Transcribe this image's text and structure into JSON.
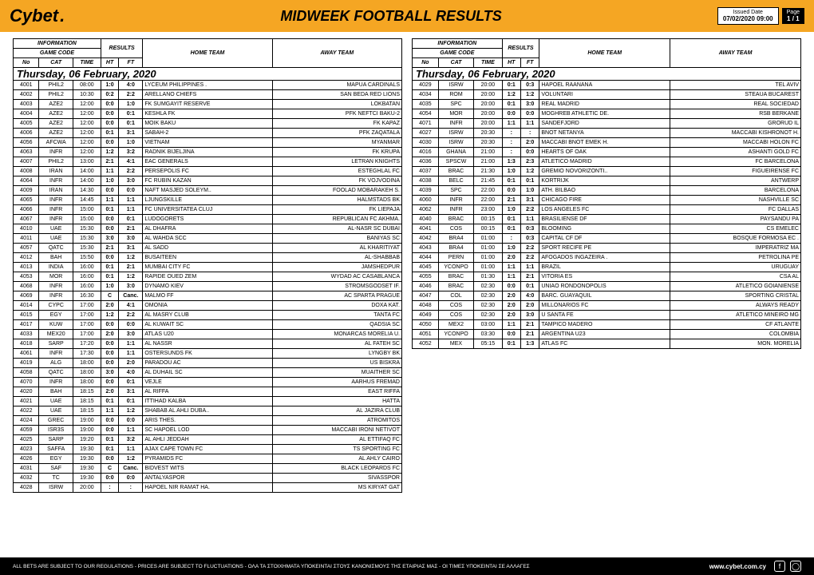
{
  "header": {
    "logo_cy": "Cy",
    "logo_bet": "bet",
    "logo_dot": ".",
    "title": "MIDWEEK FOOTBALL RESULTS",
    "issued_label": "Issued Date",
    "issued_value": "07/02/2020 09:00",
    "page_label": "Page",
    "page_value": "1 / 1"
  },
  "table_headers": {
    "info": "INFORMATION",
    "results": "RESULTS",
    "home": "HOME TEAM",
    "away": "AWAY TEAM",
    "game_code": "GAME CODE",
    "no": "No",
    "cat": "CAT",
    "time": "TIME",
    "ht": "HT",
    "ft": "FT"
  },
  "date_header": "Thursday, 06 February, 2020",
  "left_rows": [
    [
      "4001",
      "PHIL2",
      "08:00",
      "1:0",
      "4:0",
      "LYCEUM PHILIPPINES .",
      "MAPUA CARDINALS"
    ],
    [
      "4002",
      "PHIL2",
      "10:30",
      "0:2",
      "2:2",
      "ARELLANO CHIEFS",
      "SAN BEDA RED LIONS"
    ],
    [
      "4003",
      "AZE2",
      "12:00",
      "0:0",
      "1:0",
      "FK SUMGAYIT RESERVE",
      "LOKBATAN"
    ],
    [
      "4004",
      "AZE2",
      "12:00",
      "0:0",
      "0:1",
      "KESHLA FK",
      "PFK NEFTCI BAKU-2"
    ],
    [
      "4005",
      "AZE2",
      "12:00",
      "0:0",
      "0:1",
      "MOIK BAKU",
      "FK KAPAZ"
    ],
    [
      "4006",
      "AZE2",
      "12:00",
      "0:1",
      "3:1",
      "SABAH-2",
      "PFK ZAQATALA"
    ],
    [
      "4056",
      "AFCWA",
      "12:00",
      "0:0",
      "1:0",
      "VIETNAM",
      "MYANMAR"
    ],
    [
      "4063",
      "INFR",
      "12:00",
      "1:2",
      "3:2",
      "RADNIK BIJELJINA",
      "FK KRUPA"
    ],
    [
      "4007",
      "PHIL2",
      "13:00",
      "2:1",
      "4:1",
      "EAC GENERALS",
      "LETRAN KNIGHTS"
    ],
    [
      "4008",
      "IRAN",
      "14:00",
      "1:1",
      "2:2",
      "PERSEPOLIS FC",
      "ESTEGHLAL FC"
    ],
    [
      "4064",
      "INFR",
      "14:00",
      "1:0",
      "3:0",
      "FC RUBIN KAZAN",
      "FK VOJVODINA"
    ],
    [
      "4009",
      "IRAN",
      "14:30",
      "0:0",
      "0:0",
      "NAFT MASJED SOLEYM..",
      "FOOLAD MOBARAKEH S."
    ],
    [
      "4065",
      "INFR",
      "14:45",
      "1:1",
      "1:1",
      "LJUNGSKILLE",
      "HALMSTADS BK"
    ],
    [
      "4066",
      "INFR",
      "15:00",
      "0:1",
      "1:1",
      "FC UNIVERSITATEA CLUJ",
      "FK LIEPAJA"
    ],
    [
      "4067",
      "INFR",
      "15:00",
      "0:0",
      "0:1",
      "LUDOGORETS",
      "REPUBLICAN FC AKHMA."
    ],
    [
      "4010",
      "UAE",
      "15:30",
      "0:0",
      "2:1",
      "AL DHAFRA",
      "AL-NASR SC DUBAI"
    ],
    [
      "4011",
      "UAE",
      "15:30",
      "3:0",
      "3:0",
      "AL WAHDA SCC",
      "BANIYAS SC"
    ],
    [
      "4057",
      "QATC",
      "15:30",
      "2:1",
      "3:1",
      "AL SADD",
      "AL KHARITIYAT"
    ],
    [
      "4012",
      "BAH",
      "15:50",
      "0:0",
      "1:2",
      "BUSAITEEN",
      "AL-SHABBAB"
    ],
    [
      "4013",
      "INDIA",
      "16:00",
      "0:1",
      "2:1",
      "MUMBAI CITY FC",
      "JAMSHEDPUR"
    ],
    [
      "4053",
      "MOR",
      "16:00",
      "0:1",
      "1:2",
      "RAPIDE OUED ZEM",
      "WYDAD AC CASABLANCA"
    ],
    [
      "4068",
      "INFR",
      "16:00",
      "1:0",
      "3:0",
      "DYNAMO KIEV",
      "STROMSGODSET IF."
    ],
    [
      "4069",
      "INFR",
      "16:30",
      "C",
      "Canc.",
      "MALMO FF",
      "AC SPARTA PRAGUE"
    ],
    [
      "4014",
      "CYPC",
      "17:00",
      "2:0",
      "4:1",
      "OMONIA",
      "DOXA KAT."
    ],
    [
      "4015",
      "EGY",
      "17:00",
      "1:2",
      "2:2",
      "AL MASRY CLUB",
      "TANTA FC"
    ],
    [
      "4017",
      "KUW",
      "17:00",
      "0:0",
      "0:0",
      "AL KUWAIT SC",
      "QADSIA SC"
    ],
    [
      "4033",
      "MEX20",
      "17:00",
      "2:0",
      "3:0",
      "ATLAS U20",
      "MONARCAS MORELIA U."
    ],
    [
      "4018",
      "SARP",
      "17:20",
      "0:0",
      "1:1",
      "AL NASSR",
      "AL FATEH SC"
    ],
    [
      "4061",
      "INFR",
      "17:30",
      "0:0",
      "1:1",
      "OSTERSUNDS FK",
      "LYNGBY BK"
    ],
    [
      "4019",
      "ALG",
      "18:00",
      "0:0",
      "2:0",
      "PARADOU AC",
      "US BISKRA"
    ],
    [
      "4058",
      "QATC",
      "18:00",
      "3:0",
      "4:0",
      "AL DUHAIL SC",
      "MUAITHER SC"
    ],
    [
      "4070",
      "INFR",
      "18:00",
      "0:0",
      "0:1",
      "VEJLE",
      "AARHUS FREMAD"
    ],
    [
      "4020",
      "BAH",
      "18:15",
      "2:0",
      "3:1",
      "AL RIFFA",
      "EAST RIFFA"
    ],
    [
      "4021",
      "UAE",
      "18:15",
      "0:1",
      "0:1",
      "ITTIHAD KALBA",
      "HATTA"
    ],
    [
      "4022",
      "UAE",
      "18:15",
      "1:1",
      "1:2",
      "SHABAB AL AHLI DUBA..",
      "AL JAZIRA CLUB"
    ],
    [
      "4024",
      "GREC",
      "19:00",
      "0:0",
      "0:0",
      "ARIS THES.",
      "ATROMITOS"
    ],
    [
      "4059",
      "ISR3S",
      "19:00",
      "0:0",
      "1:1",
      "SC HAPOEL LOD",
      "MACCABI IRONI NETIVOT"
    ],
    [
      "4025",
      "SARP",
      "19:20",
      "0:1",
      "3:2",
      "AL AHLI JEDDAH",
      "AL ETTIFAQ FC"
    ],
    [
      "4023",
      "SAFFA",
      "19:30",
      "0:1",
      "1:1",
      "AJAX CAPE TOWN FC",
      "TS SPORTING FC"
    ],
    [
      "4026",
      "EGY",
      "19:30",
      "0:0",
      "1:2",
      "PYRAMIDS FC",
      "AL AHLY CAIRO"
    ],
    [
      "4031",
      "SAF",
      "19:30",
      "C",
      "Canc.",
      "BIDVEST WITS",
      "BLACK LEOPARDS FC"
    ],
    [
      "4032",
      "TC",
      "19:30",
      "0:0",
      "0:0",
      "ANTALYASPOR",
      "SIVASSPOR"
    ],
    [
      "4028",
      "ISRW",
      "20:00",
      ":",
      ":",
      "HAPOEL NIR RAMAT HA.",
      "MS KIRYAT GAT"
    ]
  ],
  "right_rows": [
    [
      "4029",
      "ISRW",
      "20:00",
      "0:1",
      "0:3",
      "HAPOEL RAANANA",
      "TEL AVIV"
    ],
    [
      "4034",
      "ROM",
      "20:00",
      "1:2",
      "1:2",
      "VOLUNTARI",
      "STEAUA BUCAREST"
    ],
    [
      "4035",
      "SPC",
      "20:00",
      "0:1",
      "3:0",
      "REAL MADRID",
      "REAL SOCIEDAD"
    ],
    [
      "4054",
      "MOR",
      "20:00",
      "0:0",
      "0:0",
      "MOGHREB ATHLETIC DE.",
      "RSB BERKANE"
    ],
    [
      "4071",
      "INFR",
      "20:00",
      "1:1",
      "1:1",
      "SANDEFJORD",
      "GRORUD IL"
    ],
    [
      "4027",
      "ISRW",
      "20:30",
      ":",
      ":",
      "BNOT NETANYA",
      "MACCABI KISHRONOT H."
    ],
    [
      "4030",
      "ISRW",
      "20:30",
      ":",
      "2:0",
      "MACCABI BNOT EMEK H.",
      "MACCABI HOLON FC"
    ],
    [
      "4016",
      "GHANA",
      "21:00",
      ":",
      "0:0",
      "HEARTS OF OAK",
      "ASHANTI GOLD FC"
    ],
    [
      "4036",
      "SPSCW",
      "21:00",
      "1:3",
      "2:3",
      "ATLETICO MADRID",
      "FC BARCELONA"
    ],
    [
      "4037",
      "BRAC",
      "21:30",
      "1:0",
      "1:2",
      "GREMIO NOVORIZONTI..",
      "FIGUEIRENSE FC"
    ],
    [
      "4038",
      "BELC",
      "21:45",
      "0:1",
      "0:1",
      "KORTRIJK",
      "ANTWERP"
    ],
    [
      "4039",
      "SPC",
      "22:00",
      "0:0",
      "1:0",
      "ATH. BILBAO",
      "BARCELONA"
    ],
    [
      "4060",
      "INFR",
      "22:00",
      "2:1",
      "3:1",
      "CHICAGO FIRE",
      "NASHVILLE SC"
    ],
    [
      "4062",
      "INFR",
      "23:00",
      "1:0",
      "2:2",
      "LOS ANGELES FC",
      "FC DALLAS"
    ],
    [
      "4040",
      "BRAC",
      "00:15",
      "0:1",
      "1:1",
      "BRASILIENSE DF",
      "PAYSANDU PA"
    ],
    [
      "4041",
      "COS",
      "00:15",
      "0:1",
      "0:3",
      "BLOOMING",
      "CS EMELEC"
    ],
    [
      "4042",
      "BRA4",
      "01:00",
      ":",
      "0:3",
      "CAPITAL CF DF",
      "BOSQUE FORMOSA EC ."
    ],
    [
      "4043",
      "BRA4",
      "01:00",
      "1:0",
      "2:2",
      "SPORT RECIFE PE",
      "IMPERATRIZ MA"
    ],
    [
      "4044",
      "PERN",
      "01:00",
      "2:0",
      "2:2",
      "AFOGADOS INGAZEIRA .",
      "PETROLINA PE"
    ],
    [
      "4045",
      "YCONPO",
      "01:00",
      "1:1",
      "1:1",
      "BRAZIL",
      "URUGUAY"
    ],
    [
      "4055",
      "BRAC",
      "01:30",
      "1:1",
      "2:1",
      "VITORIA ES",
      "CSA AL"
    ],
    [
      "4046",
      "BRAC",
      "02:30",
      "0:0",
      "0:1",
      "UNIAO RONDONOPOLIS",
      "ATLETICO GOIANIENSE"
    ],
    [
      "4047",
      "COL",
      "02:30",
      "2:0",
      "4:0",
      "BARC. GUAYAQUIL",
      "SPORTING CRISTAL"
    ],
    [
      "4048",
      "COS",
      "02:30",
      "2:0",
      "2:0",
      "MILLONARIOS FC",
      "ALWAYS READY"
    ],
    [
      "4049",
      "COS",
      "02:30",
      "2:0",
      "3:0",
      "U SANTA FE",
      "ATLETICO MINEIRO MG"
    ],
    [
      "4050",
      "MEX2",
      "03:00",
      "1:1",
      "2:1",
      "TAMPICO MADERO",
      "CF ATLANTE"
    ],
    [
      "4051",
      "YCONPO",
      "03:30",
      "0:0",
      "2:1",
      "ARGENTINA U23",
      "COLOMBIA"
    ],
    [
      "4052",
      "MEX",
      "05:15",
      "0:1",
      "1:3",
      "ATLAS FC",
      "MON. MORELIA"
    ]
  ],
  "footer": {
    "text": "ALL BETS ARE SUBJECT TO OUR REGULATIONS - PRICES ARE SUBJECT TO FLUCTUATIONS - ΟΛΑ ΤΑ ΣΤΟΙΧΗΜΑΤΑ ΥΠΟΚΕΙΝΤΑΙ ΣΤΟΥΣ ΚΑΝΟΝΙΣΜΟΥΣ ΤΗΣ ΕΤΑΙΡΙΑΣ ΜΑΣ - ΟΙ ΤΙΜΕΣ ΥΠΟΚΕΙΝΤΑΙ ΣΕ ΑΛΛΑΓΕΣ",
    "url": "www.cybet.com.cy"
  },
  "style": {
    "header_bg": "#f5a623",
    "footer_bg": "#000000",
    "border": "#000000",
    "font_size_body": 7,
    "font_size_date": 13,
    "font_size_title": 18
  }
}
